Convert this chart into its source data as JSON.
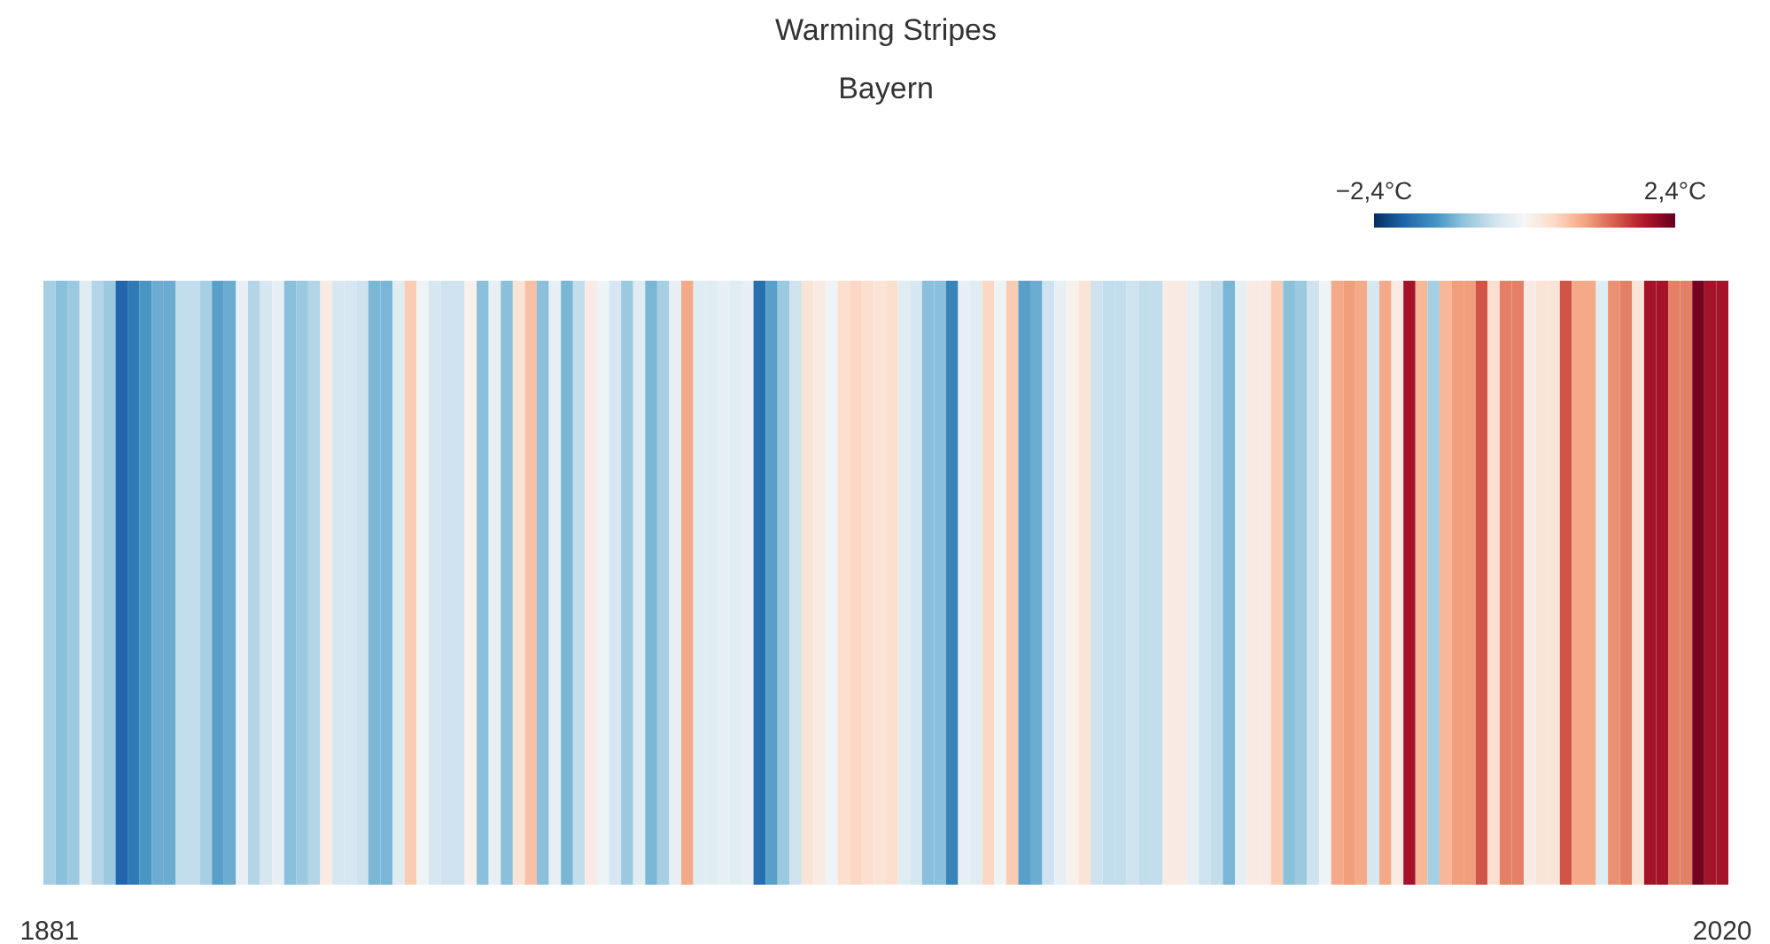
{
  "chart_data": {
    "type": "heatmap",
    "title": "Warming Stripes",
    "subtitle": "Bayern",
    "categories": [
      "1881",
      null,
      null,
      null,
      null,
      null,
      null,
      null,
      null,
      null,
      null,
      null,
      null,
      null,
      null,
      null,
      null,
      null,
      null,
      null,
      null,
      null,
      null,
      null,
      null,
      null,
      null,
      null,
      null,
      null,
      null,
      null,
      null,
      null,
      null,
      null,
      null,
      null,
      null,
      null,
      null,
      null,
      null,
      null,
      null,
      null,
      null,
      null,
      null,
      null,
      null,
      null,
      null,
      null,
      null,
      null,
      null,
      null,
      null,
      null,
      null,
      null,
      null,
      null,
      null,
      null,
      null,
      null,
      null,
      null,
      null,
      null,
      null,
      null,
      null,
      null,
      null,
      null,
      null,
      null,
      null,
      null,
      null,
      null,
      null,
      null,
      null,
      null,
      null,
      null,
      null,
      null,
      null,
      null,
      null,
      null,
      null,
      null,
      null,
      null,
      null,
      null,
      null,
      null,
      null,
      null,
      null,
      null,
      null,
      null,
      null,
      null,
      null,
      null,
      null,
      null,
      null,
      null,
      null,
      null,
      null,
      null,
      null,
      null,
      null,
      null,
      null,
      null,
      null,
      null,
      null,
      null,
      null,
      null,
      null,
      null,
      null,
      null,
      null,
      "2020"
    ],
    "y_categories": [
      null
    ],
    "cells": [
      [
        -0.8,
        -1.0,
        -0.9,
        -0.3,
        -0.7,
        -0.9,
        -1.9,
        -1.7,
        -1.4,
        -1.2,
        -1.2,
        -0.6,
        -0.6,
        -0.8,
        -1.3,
        -1.2,
        -0.2,
        -0.7,
        -0.4,
        -0.2,
        -1.0,
        -0.9,
        -0.7,
        0.2,
        -0.4,
        -0.4,
        -0.5,
        -1.1,
        -1.1,
        -0.3,
        0.6,
        -0.1,
        -0.4,
        -0.5,
        -0.5,
        0.1,
        -1.0,
        -0.2,
        -1.0,
        0.3,
        0.7,
        -1.0,
        -0.2,
        -1.1,
        -0.6,
        0.2,
        -0.1,
        -0.4,
        -0.9,
        -0.3,
        -1.1,
        -0.8,
        -0.2,
        0.9,
        -0.3,
        -0.3,
        -0.2,
        -0.3,
        -0.2,
        -1.8,
        -1.3,
        -0.9,
        -0.5,
        0.3,
        0.2,
        -0.1,
        0.4,
        0.5,
        0.4,
        0.3,
        0.4,
        -0.3,
        -0.4,
        -1.0,
        -1.0,
        -1.6,
        -0.2,
        -0.3,
        0.5,
        -0.1,
        0.6,
        -1.3,
        -1.2,
        -0.5,
        -0.2,
        0.1,
        0.3,
        -0.5,
        -0.6,
        -0.6,
        -0.5,
        -0.6,
        -0.6,
        0.2,
        0.2,
        -0.2,
        -0.5,
        -0.6,
        -1.1,
        -0.2,
        0.2,
        0.2,
        0.6,
        -1.0,
        -0.9,
        -0.5,
        -0.1,
        0.9,
        1.0,
        0.9,
        -0.4,
        0.9,
        0.2,
        2.0,
        0.8,
        -0.8,
        0.8,
        1.0,
        1.0,
        1.5,
        0.4,
        1.2,
        1.2,
        0.2,
        0.3,
        0.3,
        1.5,
        0.9,
        0.9,
        -0.3,
        1.1,
        1.2,
        0.3,
        2.0,
        2.0,
        1.2,
        1.2,
        2.3,
        2.0,
        2.0
      ]
    ],
    "clim": [
      -2.4,
      2.4
    ],
    "cticks": [
      {
        "value": -2.4,
        "label": "−2,4°C"
      },
      {
        "value": 2.4,
        "label": "2,4°C"
      }
    ]
  }
}
